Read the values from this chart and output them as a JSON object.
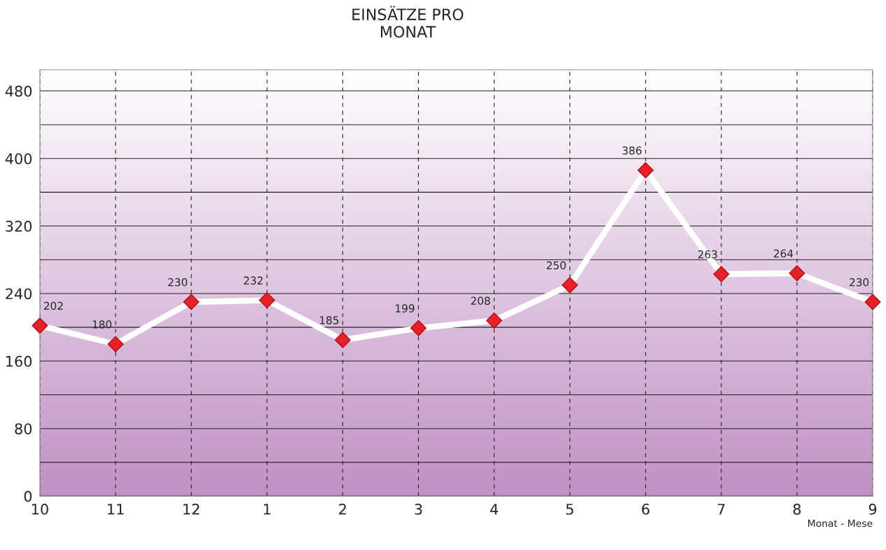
{
  "chart_data": {
    "type": "line",
    "title": "EINSÄTZE PRO\nMONAT",
    "xlabel": "Monat - Mese",
    "categories": [
      "10",
      "11",
      "12",
      "1",
      "2",
      "3",
      "4",
      "5",
      "6",
      "7",
      "8",
      "9"
    ],
    "series": [
      {
        "color": "#ffffff",
        "values": [
          202,
          180,
          230,
          232,
          185,
          199,
          208,
          250,
          386,
          263,
          264,
          230
        ]
      }
    ],
    "ylim": [
      0,
      505
    ],
    "yticks": [
      0,
      {
        "value": 40,
        "label": null
      },
      80,
      {
        "value": 120,
        "label": null
      },
      160,
      {
        "value": 200,
        "label": null
      },
      240,
      {
        "value": 280,
        "label": null
      },
      320,
      {
        "value": 360,
        "label": null
      },
      400,
      {
        "value": 440,
        "label": null
      },
      480
    ],
    "grid": true,
    "marker": "diamond",
    "line_style": "solid",
    "data_labels": true,
    "legend": false
  }
}
